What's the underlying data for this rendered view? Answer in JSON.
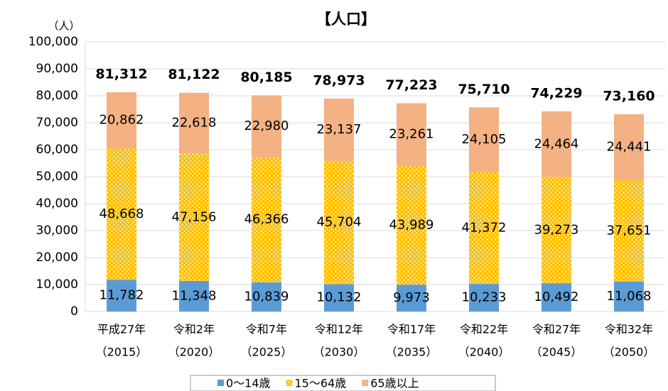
{
  "chart_data": {
    "type": "stacked_bar",
    "title": "【人口】",
    "y_label": "（人）",
    "categories": [
      "平成27年",
      "令和2年",
      "令和7年",
      "令和12年",
      "令和17年",
      "令和22年",
      "令和27年",
      "令和32年"
    ],
    "category_years": [
      "（2015）",
      "（2020）",
      "（2025）",
      "（2030）",
      "（2035）",
      "（2040）",
      "（2045）",
      "（2050）"
    ],
    "series": [
      {
        "name": "0～14歳",
        "color": "#5b9bd5",
        "values": [
          11782,
          11348,
          10839,
          10132,
          9973,
          10233,
          10492,
          11068
        ],
        "value_labels": [
          "11,782",
          "11,348",
          "10,839",
          "10,132",
          "9,973",
          "10,233",
          "10,492",
          "11,068"
        ]
      },
      {
        "name": "15～64歳",
        "color": "#ffc000",
        "pattern": "dots",
        "values": [
          48668,
          47156,
          46366,
          45704,
          43989,
          41372,
          39273,
          37651
        ],
        "value_labels": [
          "48,668",
          "47,156",
          "46,366",
          "45,704",
          "43,989",
          "41,372",
          "39,273",
          "37,651"
        ]
      },
      {
        "name": "65歳以上",
        "color": "#f4b183",
        "values": [
          20862,
          22618,
          22980,
          23137,
          23261,
          24105,
          24464,
          24441
        ],
        "value_labels": [
          "20,862",
          "22,618",
          "22,980",
          "23,137",
          "23,261",
          "24,105",
          "24,464",
          "24,441"
        ]
      }
    ],
    "totals": [
      81312,
      81122,
      80185,
      78973,
      77223,
      75710,
      74229,
      73160
    ],
    "total_labels": [
      "81,312",
      "81,122",
      "80,185",
      "78,973",
      "77,223",
      "75,710",
      "74,229",
      "73,160"
    ],
    "ylim": [
      0,
      100000
    ],
    "yticks": [
      0,
      {
        "value": 10000,
        "label": "10,000"
      },
      {
        "value": 20000,
        "label": "20,000"
      },
      {
        "value": 30000,
        "label": "30,000"
      },
      {
        "value": 40000,
        "label": "40,000"
      },
      {
        "value": 50000,
        "label": "50,000"
      },
      {
        "value": 60000,
        "label": "60,000"
      },
      {
        "value": 70000,
        "label": "70,000"
      },
      {
        "value": 80000,
        "label": "80,000"
      },
      {
        "value": 90000,
        "label": "90,000"
      },
      {
        "value": 100000,
        "label": "100,000"
      }
    ],
    "grid": true,
    "legend": "bottom"
  }
}
